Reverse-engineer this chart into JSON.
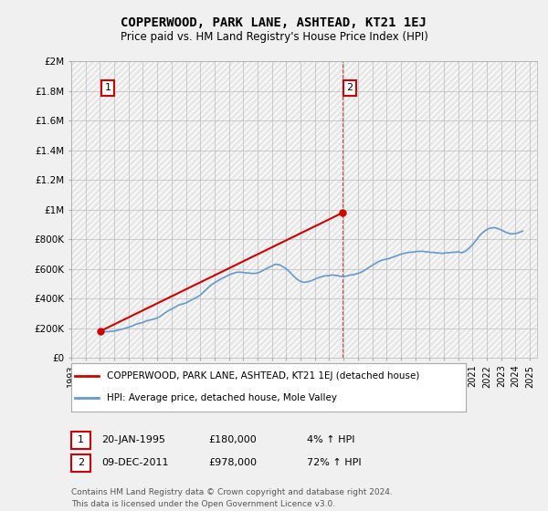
{
  "title": "COPPERWOOD, PARK LANE, ASHTEAD, KT21 1EJ",
  "subtitle": "Price paid vs. HM Land Registry's House Price Index (HPI)",
  "background_color": "#e8e8e8",
  "plot_bg_color": "#e8e8e8",
  "hatch_color": "#ffffff",
  "grid_color": "#cccccc",
  "red_color": "#cc0000",
  "blue_color": "#6699cc",
  "ylim": [
    0,
    2000000
  ],
  "yticks": [
    0,
    200000,
    400000,
    600000,
    800000,
    1000000,
    1200000,
    1400000,
    1600000,
    1800000,
    2000000
  ],
  "ytick_labels": [
    "£0",
    "£200K",
    "£400K",
    "£600K",
    "£800K",
    "£1M",
    "£1.2M",
    "£1.4M",
    "£1.6M",
    "£1.8M",
    "£2M"
  ],
  "xlim_start": 1993.0,
  "xlim_end": 2025.5,
  "xtick_years": [
    1993,
    1994,
    1995,
    1996,
    1997,
    1998,
    1999,
    2000,
    2001,
    2002,
    2003,
    2004,
    2005,
    2006,
    2007,
    2008,
    2009,
    2010,
    2011,
    2012,
    2013,
    2014,
    2015,
    2016,
    2017,
    2018,
    2019,
    2020,
    2021,
    2022,
    2023,
    2024,
    2025
  ],
  "sale1_x": 1995.05,
  "sale1_y": 180000,
  "sale1_label": "1",
  "sale2_x": 2011.93,
  "sale2_y": 978000,
  "sale2_label": "2",
  "vline_x": 2011.93,
  "annotation1": [
    "1",
    "20-JAN-1995",
    "£180,000",
    "4% ↑ HPI"
  ],
  "annotation2": [
    "2",
    "09-DEC-2011",
    "£978,000",
    "72% ↑ HPI"
  ],
  "legend_line1": "COPPERWOOD, PARK LANE, ASHTEAD, KT21 1EJ (detached house)",
  "legend_line2": "HPI: Average price, detached house, Mole Valley",
  "footer": "Contains HM Land Registry data © Crown copyright and database right 2024.\nThis data is licensed under the Open Government Licence v3.0.",
  "hpi_data_x": [
    1995.08,
    1995.25,
    1995.5,
    1995.75,
    1996.0,
    1996.25,
    1996.5,
    1996.75,
    1997.0,
    1997.25,
    1997.5,
    1997.75,
    1998.0,
    1998.25,
    1998.5,
    1998.75,
    1999.0,
    1999.25,
    1999.5,
    1999.75,
    2000.0,
    2000.25,
    2000.5,
    2000.75,
    2001.0,
    2001.25,
    2001.5,
    2001.75,
    2002.0,
    2002.25,
    2002.5,
    2002.75,
    2003.0,
    2003.25,
    2003.5,
    2003.75,
    2004.0,
    2004.25,
    2004.5,
    2004.75,
    2005.0,
    2005.25,
    2005.5,
    2005.75,
    2006.0,
    2006.25,
    2006.5,
    2006.75,
    2007.0,
    2007.25,
    2007.5,
    2007.75,
    2008.0,
    2008.25,
    2008.5,
    2008.75,
    2009.0,
    2009.25,
    2009.5,
    2009.75,
    2010.0,
    2010.25,
    2010.5,
    2010.75,
    2011.0,
    2011.25,
    2011.5,
    2011.75,
    2012.0,
    2012.25,
    2012.5,
    2012.75,
    2013.0,
    2013.25,
    2013.5,
    2013.75,
    2014.0,
    2014.25,
    2014.5,
    2014.75,
    2015.0,
    2015.25,
    2015.5,
    2015.75,
    2016.0,
    2016.25,
    2016.5,
    2016.75,
    2017.0,
    2017.25,
    2017.5,
    2017.75,
    2018.0,
    2018.25,
    2018.5,
    2018.75,
    2019.0,
    2019.25,
    2019.5,
    2019.75,
    2020.0,
    2020.25,
    2020.5,
    2020.75,
    2021.0,
    2021.25,
    2021.5,
    2021.75,
    2022.0,
    2022.25,
    2022.5,
    2022.75,
    2023.0,
    2023.25,
    2023.5,
    2023.75,
    2024.0,
    2024.25,
    2024.5
  ],
  "hpi_data_y": [
    173000,
    175000,
    176000,
    177000,
    180000,
    185000,
    192000,
    198000,
    205000,
    215000,
    225000,
    232000,
    238000,
    248000,
    255000,
    260000,
    268000,
    282000,
    300000,
    315000,
    328000,
    342000,
    355000,
    362000,
    370000,
    382000,
    395000,
    408000,
    422000,
    445000,
    468000,
    490000,
    505000,
    520000,
    535000,
    545000,
    558000,
    568000,
    575000,
    578000,
    575000,
    572000,
    570000,
    568000,
    572000,
    582000,
    595000,
    608000,
    620000,
    630000,
    628000,
    615000,
    600000,
    578000,
    552000,
    530000,
    515000,
    508000,
    512000,
    520000,
    530000,
    540000,
    548000,
    552000,
    555000,
    558000,
    555000,
    550000,
    548000,
    552000,
    558000,
    562000,
    568000,
    578000,
    592000,
    608000,
    622000,
    638000,
    652000,
    660000,
    665000,
    672000,
    680000,
    690000,
    698000,
    705000,
    710000,
    712000,
    715000,
    718000,
    718000,
    715000,
    712000,
    710000,
    708000,
    705000,
    705000,
    708000,
    710000,
    712000,
    715000,
    708000,
    718000,
    738000,
    762000,
    792000,
    825000,
    848000,
    865000,
    875000,
    878000,
    872000,
    862000,
    850000,
    840000,
    835000,
    838000,
    845000,
    855000
  ],
  "property_data_x": [
    1995.05,
    2011.93
  ],
  "property_data_y": [
    180000,
    978000
  ]
}
